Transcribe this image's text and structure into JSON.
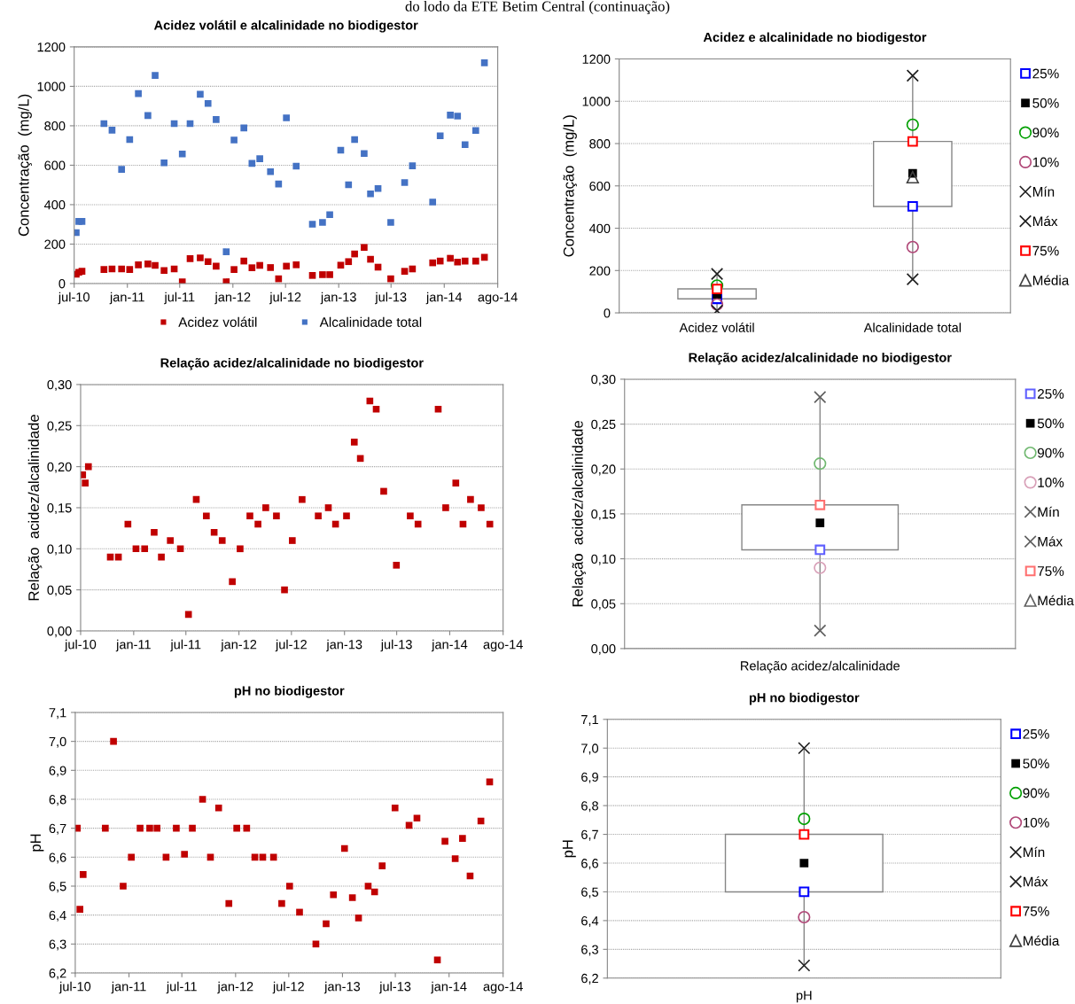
{
  "chart_data": [
    {
      "type": "scatter",
      "title": "Acidez volátil e alcalinidade no biodigestor",
      "ylabel": "Concentração  (mg/L)",
      "annotations": [
        "do lodo da ETE Betim Central (continuação)"
      ],
      "x": [
        "2010-07-08",
        "2010-07-17",
        "2010-07-28",
        "2010-10-12",
        "2010-11-09",
        "2010-12-12",
        "2011-01-09",
        "2011-02-08",
        "2011-03-13",
        "2011-04-07",
        "2011-05-08",
        "2011-06-12",
        "2011-07-10",
        "2011-08-06",
        "2011-09-10",
        "2011-10-07",
        "2011-11-04",
        "2011-12-09",
        "2012-01-05",
        "2012-02-08",
        "2012-03-07",
        "2012-04-03",
        "2012-05-10",
        "2012-06-07",
        "2012-07-04",
        "2012-08-07",
        "2012-10-02",
        "2012-11-06",
        "2012-12-01",
        "2013-01-08",
        "2013-02-04",
        "2013-02-25",
        "2013-03-30",
        "2013-04-21",
        "2013-05-17",
        "2013-06-30",
        "2013-08-17",
        "2013-09-13",
        "2013-11-22",
        "2013-12-18",
        "2014-01-22",
        "2014-02-16",
        "2014-03-14",
        "2014-04-20",
        "2014-05-20"
      ],
      "series": [
        {
          "name": "Acidez volátil",
          "color": "#c00000",
          "values": [
            47,
            57,
            62,
            71,
            74,
            74,
            71,
            95,
            99,
            92,
            66,
            74,
            9,
            126,
            130,
            111,
            88,
            9,
            71,
            114,
            80,
            92,
            81,
            24,
            88,
            95,
            41,
            45,
            45,
            93,
            111,
            150,
            183,
            123,
            83,
            24,
            62,
            74,
            105,
            114,
            128,
            109,
            114,
            114,
            133
          ]
        },
        {
          "name": "Alcalinidade total",
          "color": "#4472c4",
          "values": [
            258,
            315,
            315,
            811,
            778,
            579,
            730,
            963,
            852,
            1055,
            612,
            811,
            657,
            811,
            960,
            913,
            832,
            161,
            728,
            789,
            609,
            633,
            567,
            505,
            840,
            595,
            301,
            310,
            349,
            676,
            501,
            730,
            659,
            455,
            482,
            310,
            512,
            597,
            413,
            749,
            854,
            849,
            704,
            776,
            1119
          ]
        }
      ],
      "xlim": [
        "2010-07-01",
        "2014-07-05"
      ],
      "xticks": [
        {
          "value": "2010-07-01",
          "label": "jul-10"
        },
        {
          "value": "2011-01-01",
          "label": "jan-11"
        },
        {
          "value": "2011-07-01",
          "label": "jul-11"
        },
        {
          "value": "2012-01-01",
          "label": "jan-12"
        },
        {
          "value": "2012-07-01",
          "label": "jul-12"
        },
        {
          "value": "2013-01-01",
          "label": "jan-13"
        },
        {
          "value": "2013-07-01",
          "label": "jul-13"
        },
        {
          "value": "2014-01-01",
          "label": "jan-14"
        },
        {
          "value": "2014-07-05",
          "label": "ago-14"
        }
      ],
      "ylim": [
        0,
        1200
      ],
      "yticks": [
        0,
        200,
        400,
        600,
        800,
        1000,
        1200
      ],
      "grid": "y",
      "legend": "bottom",
      "marker": "square"
    },
    {
      "type": "box",
      "title": "Acidez e alcalinidade no biodigestor",
      "ylabel": "Concentração  (mg/L)",
      "categories": [
        "Acidez volátil",
        "Alcalinidade total"
      ],
      "boxes": [
        {
          "low": 10,
          "q1": 66,
          "q3": 113,
          "high": 184
        },
        {
          "low": 159,
          "q1": 503,
          "q3": 810,
          "high": 1121
        }
      ],
      "series": [
        {
          "name": "25%",
          "type": "scatter",
          "marker": "square",
          "color": "#0000ff",
          "values": [
            66,
            503
          ]
        },
        {
          "name": "50%",
          "type": "scatter",
          "marker": "square",
          "color": "#000000",
          "values": [
            87,
            659
          ]
        },
        {
          "name": "90%",
          "type": "scatter",
          "marker": "circle",
          "color": "#00a000",
          "values": [
            129,
            889
          ]
        },
        {
          "name": "10%",
          "type": "scatter",
          "marker": "circle",
          "color": "#b04878",
          "values": [
            40,
            311
          ]
        },
        {
          "name": "Mín",
          "type": "scatter",
          "marker": "cross",
          "color": "#202020",
          "values": [
            10,
            159
          ]
        },
        {
          "name": "Máx",
          "type": "scatter",
          "marker": "cross",
          "color": "#202020",
          "values": [
            184,
            1121
          ]
        },
        {
          "name": "75%",
          "type": "scatter",
          "marker": "square",
          "color": "#ff0000",
          "values": [
            113,
            810
          ]
        },
        {
          "name": "Média",
          "type": "scatter",
          "marker": "triangle",
          "color": "#404040",
          "values": [
            null,
            641
          ]
        }
      ],
      "ylim": [
        0,
        1200
      ],
      "yticks": [
        0,
        200,
        400,
        600,
        800,
        1000,
        1200
      ],
      "grid": "y",
      "legend": "right"
    },
    {
      "type": "scatter",
      "title": "Relação acidez/alcalinidade no biodigestor",
      "ylabel": "Relação  acidez/alcalinidade",
      "x": [
        "2010-07-08",
        "2010-07-17",
        "2010-07-28",
        "2010-10-12",
        "2010-11-09",
        "2010-12-12",
        "2011-01-09",
        "2011-02-08",
        "2011-03-13",
        "2011-04-07",
        "2011-05-08",
        "2011-06-12",
        "2011-07-10",
        "2011-08-06",
        "2011-09-10",
        "2011-10-07",
        "2011-11-04",
        "2011-12-09",
        "2012-01-05",
        "2012-02-08",
        "2012-03-07",
        "2012-04-03",
        "2012-05-10",
        "2012-06-07",
        "2012-07-04",
        "2012-08-07",
        "2012-10-02",
        "2012-11-06",
        "2012-12-01",
        "2013-01-08",
        "2013-02-04",
        "2013-02-25",
        "2013-03-30",
        "2013-04-21",
        "2013-05-17",
        "2013-06-30",
        "2013-08-17",
        "2013-09-13",
        "2013-11-22",
        "2013-12-18",
        "2014-01-22",
        "2014-02-16",
        "2014-03-14",
        "2014-04-20",
        "2014-05-20"
      ],
      "series": [
        {
          "color": "#c00000",
          "values": [
            0.19,
            0.18,
            0.2,
            0.09,
            0.09,
            0.13,
            0.1,
            0.1,
            0.12,
            0.09,
            0.11,
            0.1,
            0.02,
            0.16,
            0.14,
            0.12,
            0.11,
            0.06,
            0.1,
            0.14,
            0.13,
            0.15,
            0.14,
            0.05,
            0.11,
            0.16,
            0.14,
            0.15,
            0.13,
            0.14,
            0.23,
            0.21,
            0.28,
            0.27,
            0.17,
            0.08,
            0.14,
            0.13,
            0.27,
            0.15,
            0.18,
            0.13,
            0.16,
            0.15,
            0.13
          ]
        }
      ],
      "xlim": [
        "2010-07-01",
        "2014-07-05"
      ],
      "xticks": [
        {
          "value": "2010-07-01",
          "label": "jul-10"
        },
        {
          "value": "2011-01-01",
          "label": "jan-11"
        },
        {
          "value": "2011-07-01",
          "label": "jul-11"
        },
        {
          "value": "2012-01-01",
          "label": "jan-12"
        },
        {
          "value": "2012-07-01",
          "label": "jul-12"
        },
        {
          "value": "2013-01-01",
          "label": "jan-13"
        },
        {
          "value": "2013-07-01",
          "label": "jul-13"
        },
        {
          "value": "2014-01-01",
          "label": "jan-14"
        },
        {
          "value": "2014-07-05",
          "label": "ago-14"
        }
      ],
      "ylim": [
        0,
        0.3
      ],
      "yticks": [
        {
          "value": 0,
          "label": "0,00"
        },
        {
          "value": 0.05,
          "label": "0,05"
        },
        {
          "value": 0.1,
          "label": "0,10"
        },
        {
          "value": 0.15,
          "label": "0,15"
        },
        {
          "value": 0.2,
          "label": "0,20"
        },
        {
          "value": 0.25,
          "label": "0,25"
        },
        {
          "value": 0.3,
          "label": "0,30"
        }
      ],
      "grid": "y",
      "marker": "square"
    },
    {
      "type": "box",
      "title": "Relação acidez/alcalinidade no biodigestor",
      "ylabel": "Relação  acidez/alcalinidade",
      "xlabel": "Relação acidez/alcalinidade",
      "categories": [
        null
      ],
      "boxes": [
        {
          "low": 0.02,
          "q1": 0.11,
          "q3": 0.16,
          "high": 0.28
        }
      ],
      "series": [
        {
          "name": "25%",
          "type": "scatter",
          "marker": "square",
          "color": "#6060ff",
          "values": [
            0.11
          ]
        },
        {
          "name": "50%",
          "type": "scatter",
          "marker": "square",
          "color": "#000000",
          "values": [
            0.14
          ]
        },
        {
          "name": "90%",
          "type": "scatter",
          "marker": "circle",
          "color": "#70b870",
          "values": [
            0.206
          ]
        },
        {
          "name": "10%",
          "type": "scatter",
          "marker": "circle",
          "color": "#d8a0b8",
          "values": [
            0.09
          ]
        },
        {
          "name": "Mín",
          "type": "scatter",
          "marker": "cross",
          "color": "#606060",
          "values": [
            0.02
          ]
        },
        {
          "name": "Máx",
          "type": "scatter",
          "marker": "cross",
          "color": "#606060",
          "values": [
            0.28
          ]
        },
        {
          "name": "75%",
          "type": "scatter",
          "marker": "square",
          "color": "#ff7070",
          "values": [
            0.16
          ]
        },
        {
          "name": "Média",
          "type": "scatter",
          "marker": "triangle",
          "color": "#606060",
          "values": [
            null
          ]
        }
      ],
      "ylim": [
        0,
        0.3
      ],
      "yticks": [
        {
          "value": 0,
          "label": "0,00"
        },
        {
          "value": 0.05,
          "label": "0,05"
        },
        {
          "value": 0.1,
          "label": "0,10"
        },
        {
          "value": 0.15,
          "label": "0,15"
        },
        {
          "value": 0.2,
          "label": "0,20"
        },
        {
          "value": 0.25,
          "label": "0,25"
        },
        {
          "value": 0.3,
          "label": "0,30"
        }
      ],
      "grid": "y",
      "legend": "right"
    },
    {
      "type": "scatter",
      "title": "pH no biodigestor",
      "ylabel": "pH",
      "x": [
        "2010-07-08",
        "2010-07-17",
        "2010-07-28",
        "2010-10-12",
        "2010-11-09",
        "2010-12-12",
        "2011-01-09",
        "2011-02-08",
        "2011-03-13",
        "2011-04-07",
        "2011-05-08",
        "2011-06-12",
        "2011-07-10",
        "2011-08-06",
        "2011-09-10",
        "2011-10-07",
        "2011-11-04",
        "2011-12-09",
        "2012-01-05",
        "2012-02-08",
        "2012-03-07",
        "2012-04-03",
        "2012-05-10",
        "2012-06-07",
        "2012-07-04",
        "2012-08-07",
        "2012-10-02",
        "2012-11-06",
        "2012-12-01",
        "2013-01-08",
        "2013-02-04",
        "2013-02-25",
        "2013-03-30",
        "2013-04-21",
        "2013-05-17",
        "2013-06-30",
        "2013-08-17",
        "2013-09-13",
        "2013-11-22",
        "2013-12-18",
        "2014-01-22",
        "2014-02-16",
        "2014-03-14",
        "2014-04-20",
        "2014-05-20"
      ],
      "series": [
        {
          "color": "#c00000",
          "values": [
            6.7,
            6.42,
            6.54,
            6.7,
            7.0,
            6.5,
            6.6,
            6.7,
            6.7,
            6.7,
            6.6,
            6.7,
            6.61,
            6.7,
            6.8,
            6.6,
            6.77,
            6.44,
            6.7,
            6.7,
            6.6,
            6.6,
            6.6,
            6.44,
            6.5,
            6.41,
            6.3,
            6.37,
            6.47,
            6.63,
            6.46,
            6.39,
            6.5,
            6.48,
            6.57,
            6.77,
            6.71,
            6.735,
            6.245,
            6.655,
            6.595,
            6.665,
            6.535,
            6.725,
            6.86
          ]
        }
      ],
      "xlim": [
        "2010-07-01",
        "2014-07-05"
      ],
      "xticks": [
        {
          "value": "2010-07-01",
          "label": "jul-10"
        },
        {
          "value": "2011-01-01",
          "label": "jan-11"
        },
        {
          "value": "2011-07-01",
          "label": "jul-11"
        },
        {
          "value": "2012-01-01",
          "label": "jan-12"
        },
        {
          "value": "2012-07-01",
          "label": "jul-12"
        },
        {
          "value": "2013-01-01",
          "label": "jan-13"
        },
        {
          "value": "2013-07-01",
          "label": "jul-13"
        },
        {
          "value": "2014-01-01",
          "label": "jan-14"
        },
        {
          "value": "2014-07-05",
          "label": "ago-14"
        }
      ],
      "ylim": [
        6.2,
        7.1
      ],
      "yticks": [
        {
          "value": 6.2,
          "label": "6,2"
        },
        {
          "value": 6.3,
          "label": "6,3"
        },
        {
          "value": 6.4,
          "label": "6,4"
        },
        {
          "value": 6.5,
          "label": "6,5"
        },
        {
          "value": 6.6,
          "label": "6,6"
        },
        {
          "value": 6.7,
          "label": "6,7"
        },
        {
          "value": 6.8,
          "label": "6,8"
        },
        {
          "value": 6.9,
          "label": "6,9"
        },
        {
          "value": 7.0,
          "label": "7,0"
        },
        {
          "value": 7.1,
          "label": "7,1"
        }
      ],
      "grid": "y",
      "marker": "square"
    },
    {
      "type": "box",
      "title": "pH no biodigestor",
      "ylabel": "pH",
      "xlabel": "pH",
      "categories": [
        null
      ],
      "boxes": [
        {
          "low": 6.244,
          "q1": 6.5,
          "q3": 6.7,
          "high": 7.0
        }
      ],
      "series": [
        {
          "name": "25%",
          "type": "scatter",
          "marker": "square",
          "color": "#0000ff",
          "values": [
            6.5
          ]
        },
        {
          "name": "50%",
          "type": "scatter",
          "marker": "square",
          "color": "#000000",
          "values": [
            6.6
          ]
        },
        {
          "name": "90%",
          "type": "scatter",
          "marker": "circle",
          "color": "#00a000",
          "values": [
            6.754
          ]
        },
        {
          "name": "10%",
          "type": "scatter",
          "marker": "circle",
          "color": "#b04878",
          "values": [
            6.412
          ]
        },
        {
          "name": "Mín",
          "type": "scatter",
          "marker": "cross",
          "color": "#202020",
          "values": [
            6.244
          ]
        },
        {
          "name": "Máx",
          "type": "scatter",
          "marker": "cross",
          "color": "#202020",
          "values": [
            7.0
          ]
        },
        {
          "name": "75%",
          "type": "scatter",
          "marker": "square",
          "color": "#ff0000",
          "values": [
            6.7
          ]
        },
        {
          "name": "Média",
          "type": "scatter",
          "marker": "triangle",
          "color": "#404040",
          "values": [
            null
          ]
        }
      ],
      "ylim": [
        6.2,
        7.1
      ],
      "yticks": [
        {
          "value": 6.2,
          "label": "6,2"
        },
        {
          "value": 6.3,
          "label": "6,3"
        },
        {
          "value": 6.4,
          "label": "6,4"
        },
        {
          "value": 6.5,
          "label": "6,5"
        },
        {
          "value": 6.6,
          "label": "6,6"
        },
        {
          "value": 6.7,
          "label": "6,7"
        },
        {
          "value": 6.8,
          "label": "6,8"
        },
        {
          "value": 6.9,
          "label": "6,9"
        },
        {
          "value": 7.0,
          "label": "7,0"
        },
        {
          "value": 7.1,
          "label": "7,1"
        }
      ],
      "grid": "y",
      "legend": "right"
    }
  ]
}
